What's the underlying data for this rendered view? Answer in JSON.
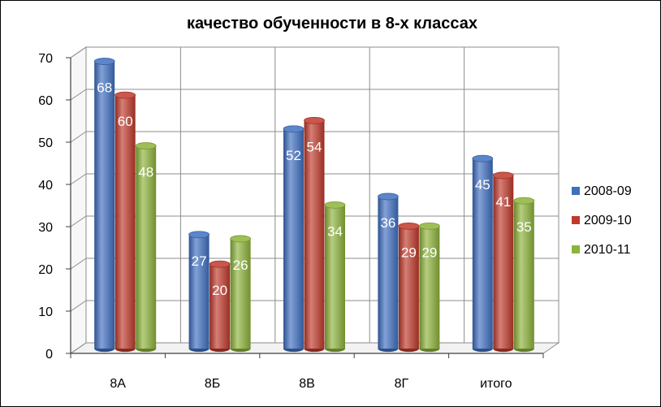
{
  "chart_data": {
    "type": "bar",
    "title": "качество обученности в 8-х классах",
    "categories": [
      "8А",
      "8Б",
      "8В",
      "8Г",
      "итого"
    ],
    "series": [
      {
        "name": "2008-09",
        "values": [
          68,
          27,
          52,
          36,
          45
        ],
        "color": "#3f6fc1"
      },
      {
        "name": "2009-10",
        "values": [
          60,
          20,
          54,
          29,
          41
        ],
        "color": "#c0392b"
      },
      {
        "name": "2010-11",
        "values": [
          48,
          26,
          34,
          29,
          35
        ],
        "color": "#8db33a"
      }
    ],
    "yticks": [
      "0",
      "10",
      "20",
      "30",
      "40",
      "50",
      "60",
      "70"
    ],
    "ylim": [
      0,
      70
    ],
    "grid": true,
    "legend_position": "right",
    "data_labels": true
  }
}
